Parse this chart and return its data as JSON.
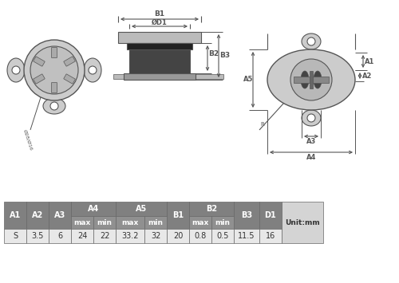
{
  "bg_color": "#ffffff",
  "lc": "#555555",
  "lf": "#cccccc",
  "df": "#444444",
  "mf": "#999999",
  "mf2": "#bbbbbb",
  "table_header": "#808080",
  "table_subheader": "#909090",
  "table_data_bg": "#e8e8e8",
  "table_unit_bg": "#d4d4d4",
  "table_text_white": "#ffffff",
  "table_text_dark": "#333333",
  "data_vals": [
    "S",
    "3.5",
    "6",
    "24",
    "22",
    "33.2",
    "32",
    "20",
    "0.8",
    "0.5",
    "11.5",
    "16"
  ]
}
